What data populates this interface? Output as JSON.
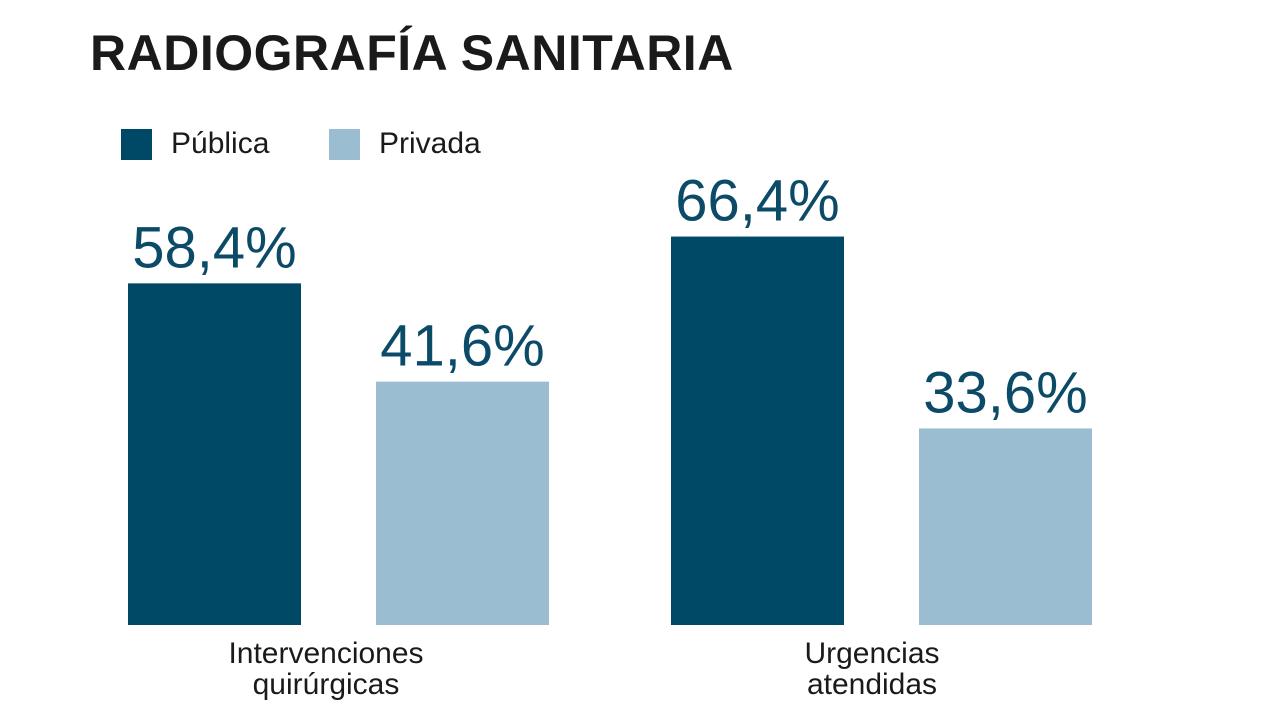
{
  "chart_data": {
    "type": "bar",
    "title": "RADIOGRAFÍA SANITARIA",
    "categories": [
      "Intervenciones quirúrgicas",
      "Urgencias atendidas"
    ],
    "series": [
      {
        "name": "Pública",
        "color": "#004966",
        "values": [
          58.4,
          66.4
        ],
        "labels": [
          "58,4%",
          "66,4%"
        ]
      },
      {
        "name": "Privada",
        "color": "#9bbdd2",
        "values": [
          41.6,
          33.6
        ],
        "labels": [
          "41,6%",
          "33,6%"
        ]
      }
    ],
    "xlabel": "",
    "ylabel": "",
    "ylim": [
      0,
      100
    ],
    "grid": false,
    "legend": "top-left",
    "value_label_color": "#0c4b68"
  }
}
